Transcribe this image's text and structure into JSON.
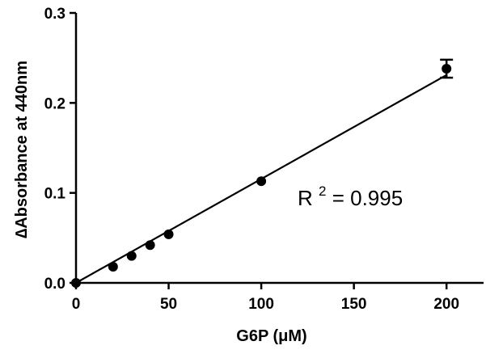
{
  "chart_data": {
    "type": "scatter",
    "title": "",
    "xlabel": "G6P (μM)",
    "ylabel": "∆Absorbance at 440nm",
    "xlim": [
      0,
      220
    ],
    "ylim": [
      0,
      0.3
    ],
    "x_ticks": [
      0,
      50,
      100,
      150,
      200
    ],
    "y_ticks": [
      0.0,
      0.1,
      0.2,
      0.3
    ],
    "x_tick_labels": [
      "0",
      "50",
      "100",
      "150",
      "200"
    ],
    "y_tick_labels": [
      "0.0",
      "0.1",
      "0.2",
      "0.3"
    ],
    "grid": false,
    "legend": "none",
    "series": [
      {
        "x": [
          0,
          20,
          30,
          40,
          50,
          100,
          200
        ],
        "y": [
          0.0,
          0.018,
          0.03,
          0.042,
          0.054,
          0.113,
          0.238
        ],
        "error": [
          0,
          0,
          0,
          0,
          0,
          0,
          0.01
        ]
      }
    ],
    "fit_line": {
      "x": [
        0,
        200
      ],
      "y": [
        0.0,
        0.231
      ]
    },
    "annotation": {
      "prefix": "R",
      "superscript": "2",
      "suffix": " = 0.995"
    }
  }
}
